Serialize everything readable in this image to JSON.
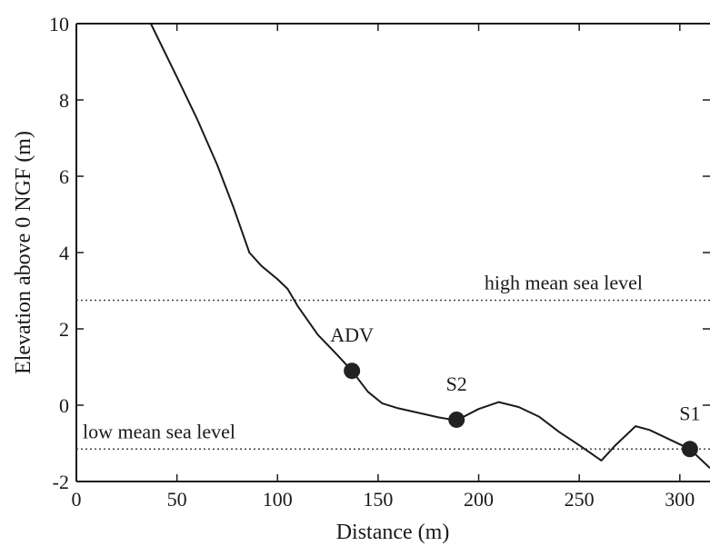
{
  "chart_data": {
    "type": "line",
    "xlabel": "Distance (m)",
    "ylabel": "Elevation above 0 NGF (m)",
    "xlim": [
      0,
      315
    ],
    "ylim": [
      -2,
      10
    ],
    "x_ticks": [
      0,
      50,
      100,
      150,
      200,
      250,
      300
    ],
    "y_ticks": [
      -2,
      0,
      2,
      4,
      6,
      8,
      10
    ],
    "grid": false,
    "series": [
      {
        "x": [
          37,
          50,
          60,
          70,
          78,
          86,
          92,
          100,
          105,
          110,
          120,
          130,
          137,
          145,
          152,
          160,
          170,
          180,
          189,
          200,
          210,
          220,
          230,
          240,
          250,
          261,
          268,
          278,
          285,
          295,
          305,
          315
        ],
        "y": [
          10,
          8.6,
          7.5,
          6.3,
          5.2,
          4.0,
          3.65,
          3.3,
          3.05,
          2.6,
          1.85,
          1.3,
          0.9,
          0.35,
          0.05,
          -0.08,
          -0.2,
          -0.32,
          -0.4,
          -0.1,
          0.08,
          -0.05,
          -0.3,
          -0.7,
          -1.05,
          -1.45,
          -1.05,
          -0.55,
          -0.65,
          -0.9,
          -1.15,
          -1.65
        ]
      }
    ],
    "reference_lines": [
      {
        "label": "high mean sea level",
        "y": 2.75
      },
      {
        "label": "low mean sea level",
        "y": -1.15
      }
    ],
    "points": [
      {
        "label": "ADV",
        "x": 137,
        "y": 0.9
      },
      {
        "label": "S2",
        "x": 189,
        "y": -0.38
      },
      {
        "label": "S1",
        "x": 305,
        "y": -1.15
      }
    ]
  },
  "colors": {
    "line": "#1a1a1a",
    "marker": "#222222",
    "reference": "#444444"
  }
}
